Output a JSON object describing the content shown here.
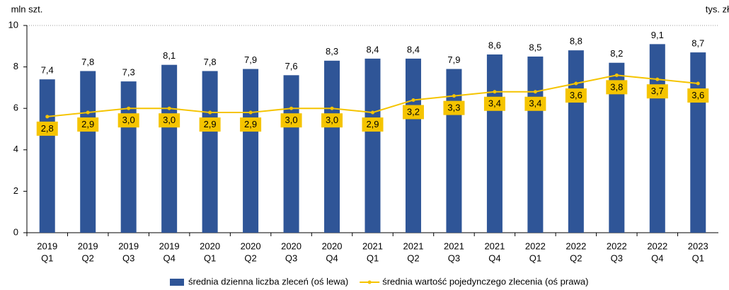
{
  "chart_data": {
    "type": "bar-line",
    "y_label": "mln szt.",
    "y2_label": "tys. zł",
    "categories": [
      [
        "2019",
        "Q1"
      ],
      [
        "2019",
        "Q2"
      ],
      [
        "2019",
        "Q3"
      ],
      [
        "2019",
        "Q4"
      ],
      [
        "2020",
        "Q1"
      ],
      [
        "2020",
        "Q2"
      ],
      [
        "2020",
        "Q3"
      ],
      [
        "2020",
        "Q4"
      ],
      [
        "2021",
        "Q1"
      ],
      [
        "2021",
        "Q2"
      ],
      [
        "2021",
        "Q3"
      ],
      [
        "2021",
        "Q4"
      ],
      [
        "2022",
        "Q1"
      ],
      [
        "2022",
        "Q2"
      ],
      [
        "2022",
        "Q3"
      ],
      [
        "2022",
        "Q4"
      ],
      [
        "2023",
        "Q1"
      ]
    ],
    "series": [
      {
        "name": "średnia dzienna liczba zleceń (oś lewa)",
        "type": "bar",
        "color": "#2f5597",
        "values": [
          7.4,
          7.8,
          7.3,
          8.1,
          7.8,
          7.9,
          7.6,
          8.3,
          8.4,
          8.4,
          7.9,
          8.6,
          8.5,
          8.8,
          8.2,
          9.1,
          8.7
        ],
        "value_labels": [
          "7,4",
          "7,8",
          "7,3",
          "8,1",
          "7,8",
          "7,9",
          "7,6",
          "8,3",
          "8,4",
          "8,4",
          "7,9",
          "8,6",
          "8,5",
          "8,8",
          "8,2",
          "9,1",
          "8,7"
        ]
      },
      {
        "name": "średnia wartość pojedynczego zlecenia (oś prawa)",
        "type": "line",
        "axis": "y2",
        "color": "#f5c400",
        "values": [
          2.8,
          2.9,
          3.0,
          3.0,
          2.9,
          2.9,
          3.0,
          3.0,
          2.9,
          3.2,
          3.3,
          3.4,
          3.4,
          3.6,
          3.8,
          3.7,
          3.6
        ],
        "value_labels": [
          "2,8",
          "2,9",
          "3,0",
          "3,0",
          "2,9",
          "2,9",
          "3,0",
          "3,0",
          "2,9",
          "3,2",
          "3,3",
          "3,4",
          "3,4",
          "3,6",
          "3,8",
          "3,7",
          "3,6"
        ]
      }
    ],
    "ylim": [
      0,
      10
    ],
    "yticks": [
      0,
      2,
      4,
      6,
      8,
      10
    ],
    "y2lim": [
      0,
      5
    ]
  }
}
